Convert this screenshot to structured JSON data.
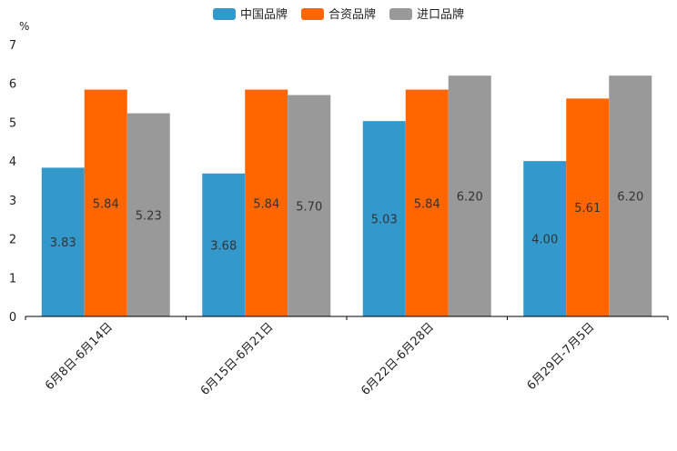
{
  "chart_data": {
    "type": "bar",
    "unit_label": "%",
    "categories": [
      "6月8日-6月14日",
      "6月15日-6月21日",
      "6月22日-6月28日",
      "6月29日-7月5日"
    ],
    "series": [
      {
        "name": "中国品牌",
        "color": "#3399cc",
        "values": [
          3.83,
          3.68,
          5.03,
          4.0
        ],
        "labels": [
          "3.83",
          "3.68",
          "5.03",
          "4.00"
        ]
      },
      {
        "name": "合资品牌",
        "color": "#ff6600",
        "values": [
          5.84,
          5.84,
          5.84,
          5.61
        ],
        "labels": [
          "5.84",
          "5.84",
          "5.84",
          "5.61"
        ]
      },
      {
        "name": "进口品牌",
        "color": "#999999",
        "values": [
          5.23,
          5.7,
          6.2,
          6.2
        ],
        "labels": [
          "5.23",
          "5.70",
          "6.20",
          "6.20"
        ]
      }
    ],
    "y_ticks": [
      "0",
      "1",
      "2",
      "3",
      "4",
      "5",
      "6",
      "7"
    ],
    "ylim": [
      0,
      7
    ],
    "legend_position": "top-center",
    "grid": false
  }
}
